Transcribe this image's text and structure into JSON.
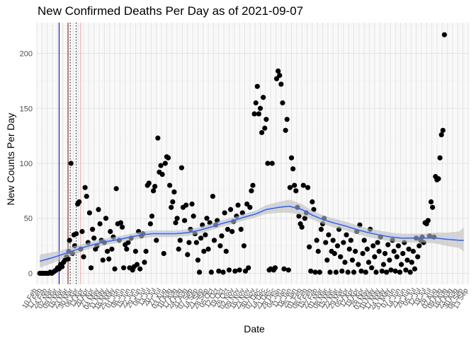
{
  "chart_data": {
    "type": "scatter",
    "title": "New Confirmed Deaths Per Day as of 2021-09-07",
    "xlabel": "Date",
    "ylabel": "New Counts Per Day",
    "x_start": "2020-02-10",
    "x_end": "2021-09-14",
    "ylim": [
      -10,
      228
    ],
    "y_ticks": [
      0,
      50,
      100,
      150,
      200
    ],
    "x_tick_labels": [
      "10 Feb",
      "17 Feb",
      "24 Feb",
      "02 Mar",
      "09 Mar",
      "16 Mar",
      "23 Mar",
      "30 Mar",
      "06 Apr",
      "13 Apr",
      "20 Apr",
      "27 Apr",
      "04 May",
      "11 May",
      "18 May",
      "25 May",
      "01 Jun",
      "08 Jun",
      "15 Jun",
      "22 Jun",
      "29 Jun",
      "06 Jul",
      "13 Jul",
      "20 Jul",
      "27 Jul",
      "03 Aug",
      "10 Aug",
      "17 Aug",
      "24 Aug",
      "31 Aug",
      "07 Sep",
      "14 Sep",
      "21 Sep",
      "28 Sep",
      "05 Oct",
      "12 Oct",
      "19 Oct",
      "26 Oct",
      "02 Nov",
      "09 Nov",
      "16 Nov",
      "23 Nov",
      "30 Nov",
      "07 Dec",
      "14 Dec",
      "21 Dec",
      "28 Dec",
      "04 Jan",
      "11 Jan",
      "18 Jan",
      "25 Jan",
      "01 Feb",
      "08 Feb",
      "15 Feb",
      "22 Feb",
      "01 Mar",
      "08 Mar",
      "15 Mar",
      "22 Mar",
      "29 Mar",
      "05 Apr",
      "12 Apr",
      "19 Apr",
      "26 Apr",
      "03 May",
      "10 May",
      "17 May",
      "24 May",
      "31 May",
      "07 Jun",
      "14 Jun",
      "21 Jun",
      "28 Jun",
      "05 Jul",
      "12 Jul",
      "19 Jul",
      "26 Jul",
      "02 Aug",
      "09 Aug",
      "16 Aug",
      "23 Aug",
      "30 Aug",
      "06 Sep",
      "13 Sep"
    ],
    "vertical_lines": [
      {
        "date": "2020-03-11",
        "color": "#00008b",
        "style": "solid"
      },
      {
        "date": "2020-03-23",
        "color": "#8b0000",
        "style": "solid"
      },
      {
        "date": "2020-03-26",
        "color": "#000000",
        "style": "dotted"
      },
      {
        "date": "2020-04-03",
        "color": "#000000",
        "style": "dotted"
      },
      {
        "date": "2020-04-09",
        "color": "#ff9a9a",
        "style": "solid"
      }
    ],
    "grid": true,
    "point_color": "#000000",
    "smooth_color": "#3366ff",
    "band_color": "#bdbdbd",
    "smooth": {
      "x": [
        "2020-02-14",
        "2020-03-01",
        "2020-03-15",
        "2020-04-01",
        "2020-04-15",
        "2020-05-01",
        "2020-05-15",
        "2020-06-01",
        "2020-06-15",
        "2020-07-01",
        "2020-07-15",
        "2020-08-01",
        "2020-08-15",
        "2020-09-01",
        "2020-09-15",
        "2020-10-01",
        "2020-10-15",
        "2020-11-01",
        "2020-11-15",
        "2020-12-01",
        "2020-12-15",
        "2021-01-01",
        "2021-01-15",
        "2021-02-01",
        "2021-02-15",
        "2021-03-01",
        "2021-03-15",
        "2021-04-01",
        "2021-04-15",
        "2021-05-01",
        "2021-05-15",
        "2021-06-01",
        "2021-06-15",
        "2021-07-01",
        "2021-07-15",
        "2021-08-01",
        "2021-08-15",
        "2021-09-01",
        "2021-09-07"
      ],
      "y": [
        11,
        14,
        17,
        21,
        24,
        27,
        29,
        31,
        33,
        35,
        36,
        36,
        36,
        37,
        39,
        42,
        45,
        48,
        51,
        54,
        58,
        60,
        61,
        58,
        53,
        49,
        46,
        43,
        40,
        37,
        35,
        33,
        32,
        32,
        32,
        32,
        31,
        30,
        30
      ],
      "lower": [
        5,
        9,
        13,
        17,
        21,
        24,
        26,
        28,
        30,
        32,
        33,
        33,
        33,
        34,
        36,
        39,
        42,
        45,
        48,
        51,
        54,
        55,
        55,
        53,
        49,
        45,
        42,
        39,
        36,
        33,
        31,
        29,
        28,
        28,
        28,
        27,
        25,
        23,
        20
      ],
      "upper": [
        17,
        19,
        21,
        25,
        27,
        30,
        32,
        34,
        36,
        38,
        39,
        39,
        39,
        40,
        42,
        45,
        48,
        51,
        54,
        57,
        62,
        65,
        67,
        63,
        57,
        53,
        50,
        47,
        44,
        41,
        39,
        37,
        36,
        36,
        36,
        37,
        37,
        38,
        42
      ]
    },
    "points": [
      [
        "2020-02-14",
        0
      ],
      [
        "2020-02-16",
        0
      ],
      [
        "2020-02-18",
        0
      ],
      [
        "2020-02-20",
        0
      ],
      [
        "2020-02-22",
        0
      ],
      [
        "2020-02-24",
        0
      ],
      [
        "2020-02-26",
        0
      ],
      [
        "2020-02-28",
        1
      ],
      [
        "2020-03-01",
        0
      ],
      [
        "2020-03-03",
        1
      ],
      [
        "2020-03-05",
        2
      ],
      [
        "2020-03-07",
        3
      ],
      [
        "2020-03-09",
        5
      ],
      [
        "2020-03-11",
        4
      ],
      [
        "2020-03-13",
        8
      ],
      [
        "2020-03-15",
        6
      ],
      [
        "2020-03-17",
        10
      ],
      [
        "2020-03-19",
        12
      ],
      [
        "2020-03-21",
        15
      ],
      [
        "2020-03-23",
        13
      ],
      [
        "2020-03-24",
        20
      ],
      [
        "2020-03-25",
        30
      ],
      [
        "2020-03-27",
        100
      ],
      [
        "2020-03-29",
        18
      ],
      [
        "2020-03-31",
        35
      ],
      [
        "2020-04-01",
        25
      ],
      [
        "2020-04-03",
        36
      ],
      [
        "2020-04-05",
        63
      ],
      [
        "2020-04-07",
        65
      ],
      [
        "2020-04-09",
        22
      ],
      [
        "2020-04-11",
        38
      ],
      [
        "2020-04-13",
        15
      ],
      [
        "2020-04-15",
        78
      ],
      [
        "2020-04-17",
        70
      ],
      [
        "2020-04-19",
        28
      ],
      [
        "2020-04-21",
        55
      ],
      [
        "2020-04-23",
        5
      ],
      [
        "2020-04-25",
        40
      ],
      [
        "2020-04-27",
        32
      ],
      [
        "2020-04-29",
        22
      ],
      [
        "2020-05-01",
        25
      ],
      [
        "2020-05-03",
        58
      ],
      [
        "2020-05-05",
        45
      ],
      [
        "2020-05-07",
        30
      ],
      [
        "2020-05-09",
        12
      ],
      [
        "2020-05-11",
        28
      ],
      [
        "2020-05-13",
        50
      ],
      [
        "2020-05-15",
        20
      ],
      [
        "2020-05-17",
        13
      ],
      [
        "2020-05-19",
        38
      ],
      [
        "2020-05-21",
        22
      ],
      [
        "2020-05-23",
        33
      ],
      [
        "2020-05-25",
        4
      ],
      [
        "2020-05-27",
        77
      ],
      [
        "2020-05-29",
        45
      ],
      [
        "2020-05-31",
        30
      ],
      [
        "2020-06-02",
        46
      ],
      [
        "2020-06-04",
        42
      ],
      [
        "2020-06-06",
        5
      ],
      [
        "2020-06-08",
        26
      ],
      [
        "2020-06-10",
        22
      ],
      [
        "2020-06-12",
        28
      ],
      [
        "2020-06-14",
        5
      ],
      [
        "2020-06-16",
        32
      ],
      [
        "2020-06-18",
        3
      ],
      [
        "2020-06-20",
        6
      ],
      [
        "2020-06-22",
        20
      ],
      [
        "2020-06-24",
        8
      ],
      [
        "2020-06-26",
        38
      ],
      [
        "2020-06-28",
        4
      ],
      [
        "2020-06-30",
        34
      ],
      [
        "2020-07-02",
        36
      ],
      [
        "2020-07-04",
        10
      ],
      [
        "2020-07-06",
        20
      ],
      [
        "2020-07-08",
        80
      ],
      [
        "2020-07-10",
        82
      ],
      [
        "2020-07-12",
        45
      ],
      [
        "2020-07-14",
        52
      ],
      [
        "2020-07-16",
        75
      ],
      [
        "2020-07-18",
        79
      ],
      [
        "2020-07-20",
        30
      ],
      [
        "2020-07-22",
        123
      ],
      [
        "2020-07-24",
        92
      ],
      [
        "2020-07-26",
        98
      ],
      [
        "2020-07-28",
        90
      ],
      [
        "2020-07-30",
        18
      ],
      [
        "2020-08-01",
        100
      ],
      [
        "2020-08-03",
        106
      ],
      [
        "2020-08-05",
        105
      ],
      [
        "2020-08-07",
        80
      ],
      [
        "2020-08-09",
        60
      ],
      [
        "2020-08-11",
        65
      ],
      [
        "2020-08-13",
        74
      ],
      [
        "2020-08-15",
        46
      ],
      [
        "2020-08-17",
        50
      ],
      [
        "2020-08-19",
        22
      ],
      [
        "2020-08-21",
        30
      ],
      [
        "2020-08-23",
        96
      ],
      [
        "2020-08-25",
        60
      ],
      [
        "2020-08-27",
        48
      ],
      [
        "2020-08-29",
        62
      ],
      [
        "2020-08-31",
        17
      ],
      [
        "2020-09-02",
        28
      ],
      [
        "2020-09-04",
        40
      ],
      [
        "2020-09-06",
        63
      ],
      [
        "2020-09-08",
        52
      ],
      [
        "2020-09-10",
        36
      ],
      [
        "2020-09-12",
        28
      ],
      [
        "2020-09-14",
        12
      ],
      [
        "2020-09-16",
        1
      ],
      [
        "2020-09-18",
        32
      ],
      [
        "2020-09-20",
        44
      ],
      [
        "2020-09-22",
        20
      ],
      [
        "2020-09-24",
        35
      ],
      [
        "2020-09-26",
        50
      ],
      [
        "2020-09-28",
        22
      ],
      [
        "2020-09-30",
        46
      ],
      [
        "2020-10-02",
        1
      ],
      [
        "2020-10-04",
        70
      ],
      [
        "2020-10-06",
        30
      ],
      [
        "2020-10-08",
        44
      ],
      [
        "2020-10-10",
        48
      ],
      [
        "2020-10-12",
        2
      ],
      [
        "2020-10-14",
        25
      ],
      [
        "2020-10-16",
        34
      ],
      [
        "2020-10-18",
        1
      ],
      [
        "2020-10-20",
        55
      ],
      [
        "2020-10-22",
        20
      ],
      [
        "2020-10-24",
        40
      ],
      [
        "2020-10-26",
        3
      ],
      [
        "2020-10-28",
        58
      ],
      [
        "2020-10-30",
        38
      ],
      [
        "2020-11-01",
        47
      ],
      [
        "2020-11-03",
        2
      ],
      [
        "2020-11-05",
        52
      ],
      [
        "2020-11-07",
        62
      ],
      [
        "2020-11-09",
        3
      ],
      [
        "2020-11-11",
        40
      ],
      [
        "2020-11-13",
        55
      ],
      [
        "2020-11-15",
        25
      ],
      [
        "2020-11-17",
        2
      ],
      [
        "2020-11-19",
        63
      ],
      [
        "2020-11-21",
        5
      ],
      [
        "2020-11-23",
        60
      ],
      [
        "2020-11-25",
        75
      ],
      [
        "2020-11-27",
        80
      ],
      [
        "2020-11-29",
        145
      ],
      [
        "2020-12-01",
        155
      ],
      [
        "2020-12-03",
        170
      ],
      [
        "2020-12-05",
        145
      ],
      [
        "2020-12-07",
        150
      ],
      [
        "2020-12-09",
        128
      ],
      [
        "2020-12-11",
        160
      ],
      [
        "2020-12-13",
        132
      ],
      [
        "2020-12-15",
        140
      ],
      [
        "2020-12-17",
        100
      ],
      [
        "2020-12-19",
        3
      ],
      [
        "2020-12-21",
        4
      ],
      [
        "2020-12-23",
        100
      ],
      [
        "2020-12-25",
        3
      ],
      [
        "2020-12-27",
        5
      ],
      [
        "2020-12-29",
        177
      ],
      [
        "2020-12-31",
        184
      ],
      [
        "2021-01-02",
        180
      ],
      [
        "2021-01-04",
        172
      ],
      [
        "2021-01-06",
        155
      ],
      [
        "2021-01-08",
        4
      ],
      [
        "2021-01-10",
        130
      ],
      [
        "2021-01-12",
        140
      ],
      [
        "2021-01-14",
        3
      ],
      [
        "2021-01-16",
        78
      ],
      [
        "2021-01-18",
        105
      ],
      [
        "2021-01-20",
        95
      ],
      [
        "2021-01-22",
        80
      ],
      [
        "2021-01-24",
        75
      ],
      [
        "2021-01-26",
        60
      ],
      [
        "2021-01-28",
        52
      ],
      [
        "2021-01-30",
        45
      ],
      [
        "2021-02-01",
        42
      ],
      [
        "2021-02-03",
        80
      ],
      [
        "2021-02-05",
        50
      ],
      [
        "2021-02-07",
        55
      ],
      [
        "2021-02-09",
        78
      ],
      [
        "2021-02-11",
        24
      ],
      [
        "2021-02-13",
        2
      ],
      [
        "2021-02-15",
        65
      ],
      [
        "2021-02-17",
        58
      ],
      [
        "2021-02-19",
        1
      ],
      [
        "2021-02-21",
        30
      ],
      [
        "2021-02-23",
        20
      ],
      [
        "2021-02-25",
        1
      ],
      [
        "2021-02-27",
        40
      ],
      [
        "2021-03-01",
        45
      ],
      [
        "2021-03-03",
        50
      ],
      [
        "2021-03-05",
        28
      ],
      [
        "2021-03-07",
        12
      ],
      [
        "2021-03-09",
        35
      ],
      [
        "2021-03-11",
        1
      ],
      [
        "2021-03-13",
        20
      ],
      [
        "2021-03-15",
        30
      ],
      [
        "2021-03-17",
        18
      ],
      [
        "2021-03-19",
        1
      ],
      [
        "2021-03-21",
        25
      ],
      [
        "2021-03-23",
        40
      ],
      [
        "2021-03-25",
        15
      ],
      [
        "2021-03-27",
        2
      ],
      [
        "2021-03-29",
        28
      ],
      [
        "2021-03-31",
        10
      ],
      [
        "2021-04-02",
        35
      ],
      [
        "2021-04-04",
        1
      ],
      [
        "2021-04-06",
        22
      ],
      [
        "2021-04-08",
        30
      ],
      [
        "2021-04-10",
        12
      ],
      [
        "2021-04-12",
        1
      ],
      [
        "2021-04-14",
        20
      ],
      [
        "2021-04-16",
        38
      ],
      [
        "2021-04-18",
        8
      ],
      [
        "2021-04-20",
        44
      ],
      [
        "2021-04-22",
        2
      ],
      [
        "2021-04-24",
        18
      ],
      [
        "2021-04-26",
        30
      ],
      [
        "2021-04-28",
        1
      ],
      [
        "2021-04-30",
        22
      ],
      [
        "2021-05-02",
        10
      ],
      [
        "2021-05-04",
        40
      ],
      [
        "2021-05-06",
        5
      ],
      [
        "2021-05-08",
        25
      ],
      [
        "2021-05-10",
        15
      ],
      [
        "2021-05-12",
        1
      ],
      [
        "2021-05-14",
        28
      ],
      [
        "2021-05-16",
        20
      ],
      [
        "2021-05-18",
        33
      ],
      [
        "2021-05-20",
        2
      ],
      [
        "2021-05-22",
        8
      ],
      [
        "2021-05-24",
        18
      ],
      [
        "2021-05-26",
        1
      ],
      [
        "2021-05-28",
        26
      ],
      [
        "2021-05-30",
        12
      ],
      [
        "2021-06-01",
        3
      ],
      [
        "2021-06-03",
        30
      ],
      [
        "2021-06-05",
        20
      ],
      [
        "2021-06-07",
        2
      ],
      [
        "2021-06-09",
        15
      ],
      [
        "2021-06-11",
        25
      ],
      [
        "2021-06-13",
        1
      ],
      [
        "2021-06-15",
        8
      ],
      [
        "2021-06-17",
        18
      ],
      [
        "2021-06-19",
        28
      ],
      [
        "2021-06-21",
        3
      ],
      [
        "2021-06-23",
        12
      ],
      [
        "2021-06-25",
        22
      ],
      [
        "2021-06-27",
        1
      ],
      [
        "2021-06-29",
        10
      ],
      [
        "2021-07-01",
        20
      ],
      [
        "2021-07-03",
        4
      ],
      [
        "2021-07-05",
        32
      ],
      [
        "2021-07-07",
        15
      ],
      [
        "2021-07-09",
        25
      ],
      [
        "2021-07-11",
        30
      ],
      [
        "2021-07-13",
        33
      ],
      [
        "2021-07-15",
        28
      ],
      [
        "2021-07-17",
        46
      ],
      [
        "2021-07-19",
        45
      ],
      [
        "2021-07-21",
        48
      ],
      [
        "2021-07-23",
        34
      ],
      [
        "2021-07-25",
        65
      ],
      [
        "2021-07-27",
        60
      ],
      [
        "2021-07-29",
        33
      ],
      [
        "2021-07-31",
        88
      ],
      [
        "2021-08-02",
        85
      ],
      [
        "2021-08-04",
        86
      ],
      [
        "2021-08-06",
        105
      ],
      [
        "2021-08-08",
        126
      ],
      [
        "2021-08-10",
        130
      ],
      [
        "2021-08-12",
        217
      ]
    ]
  }
}
